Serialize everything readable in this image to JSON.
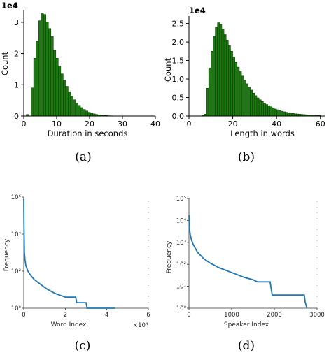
{
  "chart_data": [
    {
      "type": "bar",
      "label": "(a)",
      "title": "",
      "xlabel": "Duration in seconds",
      "ylabel": "Count",
      "y_multiplier": "1e4",
      "xlim": [
        0,
        40
      ],
      "ylim": [
        0,
        3.4
      ],
      "xticks": [
        0,
        10,
        20,
        30,
        40
      ],
      "yticks": [
        0,
        1,
        2,
        3
      ],
      "bin_width": 0.75,
      "x": [
        0.75,
        2.25,
        3.0,
        3.75,
        4.5,
        5.25,
        6.0,
        6.75,
        7.5,
        8.25,
        9.0,
        9.75,
        10.5,
        11.25,
        12.0,
        12.75,
        13.5,
        14.25,
        15.0,
        15.75,
        16.5,
        17.25,
        18.0,
        18.75,
        19.5,
        20.25,
        21.0,
        21.75,
        22.5,
        23.25,
        24.0,
        24.75,
        25.5,
        26.25,
        27.0
      ],
      "values": [
        0.05,
        0.9,
        1.85,
        2.4,
        3.05,
        3.3,
        3.25,
        3.0,
        2.8,
        2.55,
        2.1,
        1.85,
        1.6,
        1.35,
        1.15,
        0.95,
        0.78,
        0.64,
        0.52,
        0.42,
        0.34,
        0.27,
        0.21,
        0.16,
        0.12,
        0.09,
        0.07,
        0.05,
        0.04,
        0.03,
        0.02,
        0.015,
        0.01,
        0.008,
        0.005
      ],
      "bar_color": "#1e7a10"
    },
    {
      "type": "bar",
      "label": "(b)",
      "title": "",
      "xlabel": "Length in words",
      "ylabel": "Count",
      "y_multiplier": "1e4",
      "xlim": [
        0,
        62
      ],
      "ylim": [
        0,
        2.7
      ],
      "xticks": [
        0,
        20,
        40,
        60
      ],
      "yticks": [
        0.0,
        0.5,
        1.0,
        1.5,
        2.0,
        2.5
      ],
      "ytick_labels": [
        "0.0",
        "0.5",
        "1.0",
        "1.5",
        "2.0",
        "2.5"
      ],
      "bin_width": 1,
      "x": [
        6,
        7,
        8,
        9,
        10,
        11,
        12,
        13,
        14,
        15,
        16,
        17,
        18,
        19,
        20,
        21,
        22,
        23,
        24,
        25,
        26,
        27,
        28,
        29,
        30,
        31,
        32,
        33,
        34,
        35,
        36,
        37,
        38,
        39,
        40,
        41,
        42,
        43,
        44,
        45,
        46,
        47,
        48,
        49,
        50,
        51,
        52,
        53,
        54,
        55,
        56,
        57,
        58,
        59
      ],
      "values": [
        0.02,
        0.05,
        0.75,
        1.3,
        1.75,
        2.15,
        2.4,
        2.52,
        2.48,
        2.35,
        2.2,
        2.05,
        1.9,
        1.75,
        1.6,
        1.45,
        1.32,
        1.2,
        1.08,
        0.97,
        0.87,
        0.78,
        0.7,
        0.62,
        0.55,
        0.49,
        0.44,
        0.39,
        0.35,
        0.31,
        0.28,
        0.25,
        0.22,
        0.19,
        0.17,
        0.15,
        0.13,
        0.115,
        0.1,
        0.09,
        0.08,
        0.07,
        0.06,
        0.055,
        0.05,
        0.045,
        0.04,
        0.035,
        0.03,
        0.027,
        0.024,
        0.021,
        0.018,
        0.015
      ],
      "bar_color": "#1e7a10"
    },
    {
      "type": "line",
      "label": "(c)",
      "title": "",
      "xlabel": "Word Index",
      "ylabel": "Frequency",
      "x_multiplier": "×10⁴",
      "yscale": "log",
      "xlim": [
        0,
        6
      ],
      "ylim_exp": [
        0,
        6
      ],
      "xticks": [
        0,
        2,
        4,
        6
      ],
      "ytick_labels": [
        "10⁰",
        "10²",
        "10⁴",
        "10⁶"
      ],
      "ytick_exps": [
        0,
        2,
        4,
        6
      ],
      "series": [
        {
          "x": [
            0,
            0.01,
            0.03,
            0.06,
            0.1,
            0.2,
            0.35,
            0.5,
            0.8,
            1.1,
            1.5,
            2.0,
            2.5,
            2.55,
            3.0,
            3.05,
            4.4
          ],
          "logy": [
            5.9,
            4.4,
            3.0,
            2.6,
            2.3,
            2.0,
            1.75,
            1.55,
            1.3,
            1.05,
            0.8,
            0.6,
            0.6,
            0.3,
            0.3,
            0.0,
            0.0
          ],
          "color": "#1f77b4"
        }
      ]
    },
    {
      "type": "line",
      "label": "(d)",
      "title": "",
      "xlabel": "Speaker Index",
      "ylabel": "Frequency",
      "yscale": "log",
      "xlim": [
        0,
        3000
      ],
      "ylim_exp": [
        0,
        5
      ],
      "xticks": [
        0,
        1000,
        2000,
        3000
      ],
      "xtick_labels": [
        "0",
        "1000",
        "2000",
        "3000"
      ],
      "ytick_labels": [
        "10⁰",
        "10¹",
        "10²",
        "10³",
        "10⁴",
        "10⁵"
      ],
      "ytick_exps": [
        0,
        1,
        2,
        3,
        4,
        5
      ],
      "series": [
        {
          "x": [
            0,
            10,
            30,
            60,
            100,
            200,
            350,
            500,
            700,
            900,
            1100,
            1300,
            1500,
            1600,
            1900,
            1950,
            2700,
            2720,
            2760
          ],
          "logy": [
            4.25,
            3.7,
            3.35,
            3.1,
            2.9,
            2.55,
            2.25,
            2.05,
            1.85,
            1.7,
            1.55,
            1.4,
            1.3,
            1.2,
            1.2,
            0.6,
            0.6,
            0.3,
            0.0
          ],
          "color": "#1f77b4"
        }
      ]
    }
  ]
}
